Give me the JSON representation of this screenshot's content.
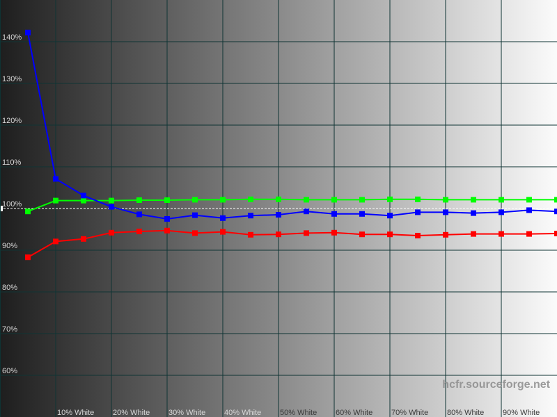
{
  "chart_data": {
    "type": "line",
    "title": "",
    "xlabel": "",
    "ylabel": "",
    "x": [
      5,
      10,
      15,
      20,
      25,
      30,
      35,
      40,
      45,
      50,
      55,
      60,
      65,
      70,
      75,
      80,
      85,
      90,
      95,
      100
    ],
    "xlim": [
      0,
      100
    ],
    "ylim": [
      55,
      150
    ],
    "grid": true,
    "reference_line": 100,
    "x_tick_labels": [
      {
        "value": 10,
        "label": "10% White"
      },
      {
        "value": 20,
        "label": "20% White"
      },
      {
        "value": 30,
        "label": "30% White"
      },
      {
        "value": 40,
        "label": "40% White"
      },
      {
        "value": 50,
        "label": "50% White"
      },
      {
        "value": 60,
        "label": "60% White"
      },
      {
        "value": 70,
        "label": "70% White"
      },
      {
        "value": 80,
        "label": "80% White"
      },
      {
        "value": 90,
        "label": "90% White"
      }
    ],
    "y_tick_labels": [
      {
        "value": 140,
        "label": "140%"
      },
      {
        "value": 130,
        "label": "130%"
      },
      {
        "value": 120,
        "label": "120%"
      },
      {
        "value": 110,
        "label": "110%"
      },
      {
        "value": 100,
        "label": "100%"
      },
      {
        "value": 90,
        "label": "90%"
      },
      {
        "value": 80,
        "label": "80%"
      },
      {
        "value": 70,
        "label": "70%"
      },
      {
        "value": 60,
        "label": "60%"
      }
    ],
    "series": [
      {
        "color": "#ff0000",
        "values": [
          88.3,
          92.1,
          92.7,
          94.2,
          94.5,
          94.7,
          94.1,
          94.4,
          93.7,
          93.8,
          94.1,
          94.2,
          93.8,
          93.8,
          93.5,
          93.7,
          93.9,
          93.9,
          93.9,
          94.0
        ]
      },
      {
        "color": "#00ff00",
        "values": [
          99.3,
          101.9,
          101.9,
          101.9,
          102.0,
          102.0,
          102.1,
          102.1,
          102.2,
          102.2,
          102.1,
          102.1,
          102.1,
          102.2,
          102.2,
          102.1,
          102.1,
          102.1,
          102.1,
          102.1
        ]
      },
      {
        "color": "#0000ff",
        "values": [
          142.2,
          107.1,
          103.1,
          100.4,
          98.6,
          97.5,
          98.4,
          97.7,
          98.3,
          98.5,
          99.3,
          98.7,
          98.7,
          98.3,
          99.1,
          99.1,
          98.9,
          99.1,
          99.6,
          99.3
        ]
      }
    ],
    "watermark": "hcfr.sourceforge.net"
  }
}
